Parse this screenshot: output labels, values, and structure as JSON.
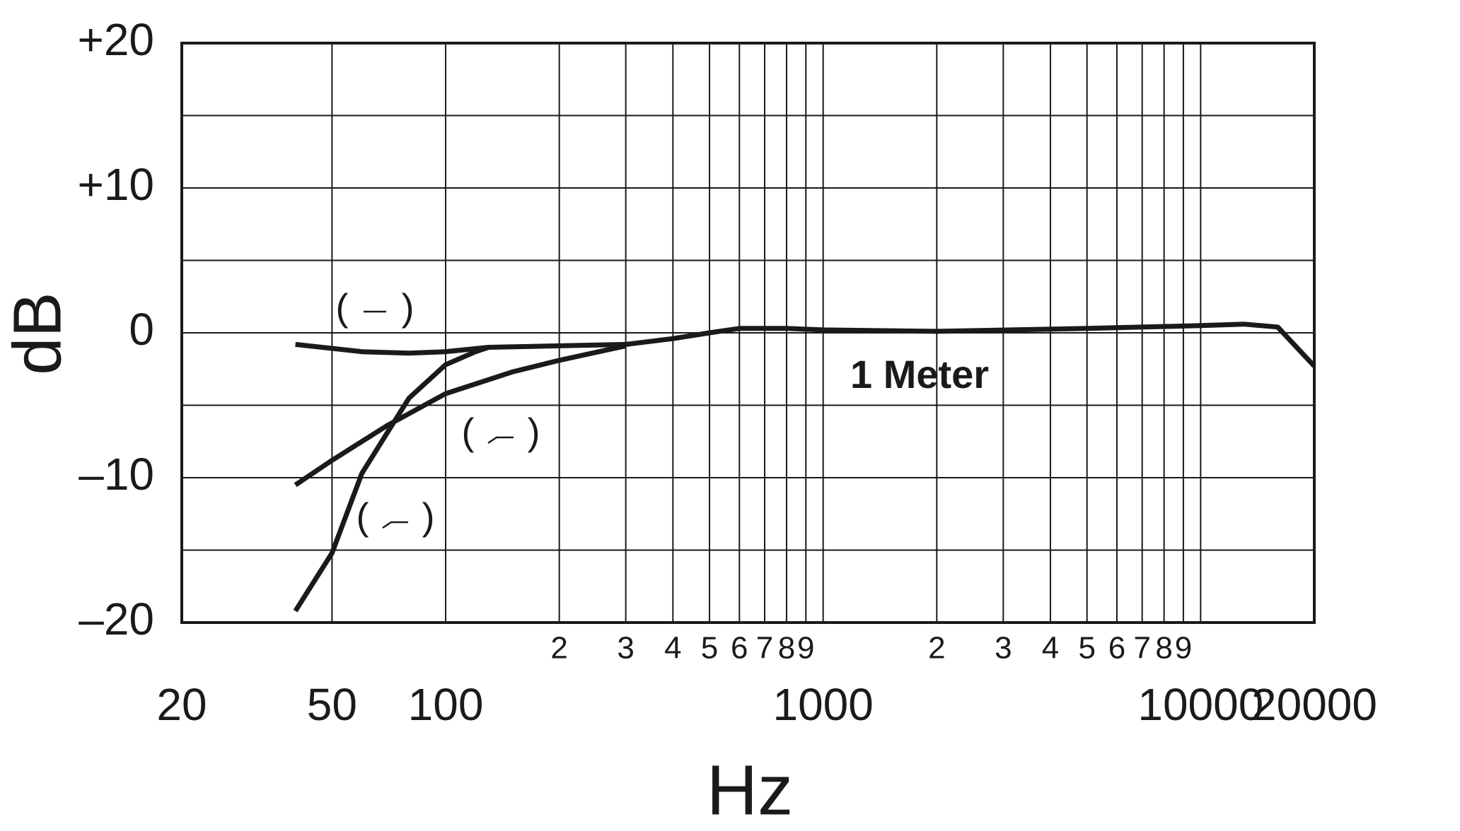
{
  "chart_data": {
    "type": "line",
    "x_label": "Hz",
    "y_label": "dB",
    "xscale": "log",
    "grid": true,
    "xlim": [
      20,
      20000
    ],
    "ylim": [
      -20,
      20
    ],
    "xticks": [
      20,
      50,
      100,
      1000,
      10000,
      20000
    ],
    "xminor_ticks": [
      {
        "value": 200,
        "label": "2"
      },
      {
        "value": 300,
        "label": "3"
      },
      {
        "value": 400,
        "label": "4"
      },
      {
        "value": 500,
        "label": "5"
      },
      {
        "value": 600,
        "label": "6"
      },
      {
        "value": 700,
        "label": "7"
      },
      {
        "value": 800,
        "label": "8"
      },
      {
        "value": 900,
        "label": "9"
      },
      {
        "value": 2000,
        "label": "2"
      },
      {
        "value": 3000,
        "label": "3"
      },
      {
        "value": 4000,
        "label": "4"
      },
      {
        "value": 5000,
        "label": "5"
      },
      {
        "value": 6000,
        "label": "6"
      },
      {
        "value": 7000,
        "label": "7"
      },
      {
        "value": 8000,
        "label": "8"
      },
      {
        "value": 9000,
        "label": "9"
      }
    ],
    "yticks": [
      {
        "value": 20,
        "label": "+20"
      },
      {
        "value": 10,
        "label": "+10"
      },
      0,
      {
        "value": -10,
        "label": "–10"
      },
      {
        "value": -20,
        "label": "–20"
      }
    ],
    "yminor_ticks": [
      15,
      5,
      -5,
      -15
    ],
    "series": [
      {
        "color": "#1a1a1a",
        "x": [
          40,
          60,
          80,
          100,
          130,
          200,
          300,
          400,
          500,
          600,
          800,
          1000,
          2000,
          5000,
          10000,
          13000,
          16000,
          20000
        ],
        "values": [
          -0.8,
          -1.3,
          -1.4,
          -1.3,
          -1.0,
          -0.9,
          -0.8,
          -0.4,
          0,
          0.3,
          0.3,
          0.2,
          0.1,
          0.3,
          0.5,
          0.6,
          0.4,
          -2.3
        ]
      },
      {
        "color": "#1a1a1a",
        "x": [
          40,
          50,
          70,
          100,
          150,
          200,
          300
        ],
        "values": [
          -10.5,
          -8.8,
          -6.4,
          -4.2,
          -2.7,
          -1.9,
          -0.9
        ]
      },
      {
        "color": "#1a1a1a",
        "x": [
          40,
          50,
          60,
          70,
          80,
          100,
          120,
          130
        ],
        "values": [
          -19.2,
          -15.2,
          -9.7,
          -6.9,
          -4.5,
          -2.2,
          -1.3,
          -1.0
        ]
      }
    ],
    "annotations": [
      {
        "text": "(     )"
      },
      {
        "text": "(     )"
      },
      {
        "text": "(     )"
      },
      {
        "text": "1 Meter"
      }
    ]
  }
}
